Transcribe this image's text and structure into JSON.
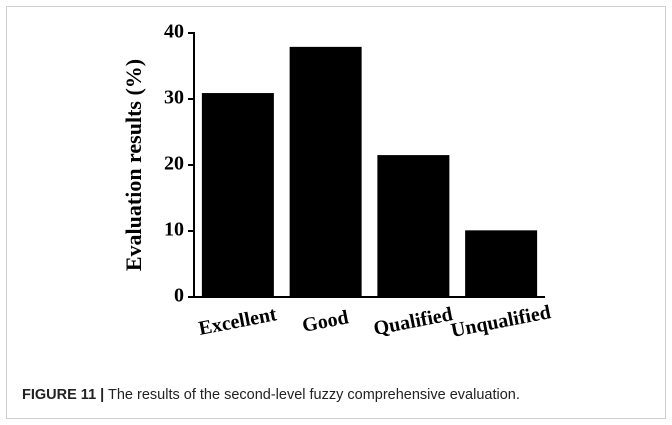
{
  "chart_data": {
    "type": "bar",
    "ylabel": "Evaluation results (%)",
    "categories": [
      "Excellent",
      "Good",
      "Qualified",
      "Unqualified"
    ],
    "values": [
      30.9,
      37.9,
      21.5,
      10.1
    ],
    "color": "#000000",
    "ylim": [
      0,
      40
    ],
    "yticks": [
      0,
      10,
      20,
      30,
      40
    ],
    "grid": false
  },
  "caption_label": "FIGURE 11 |",
  "caption": "The results of the second-level fuzzy comprehensive evaluation."
}
